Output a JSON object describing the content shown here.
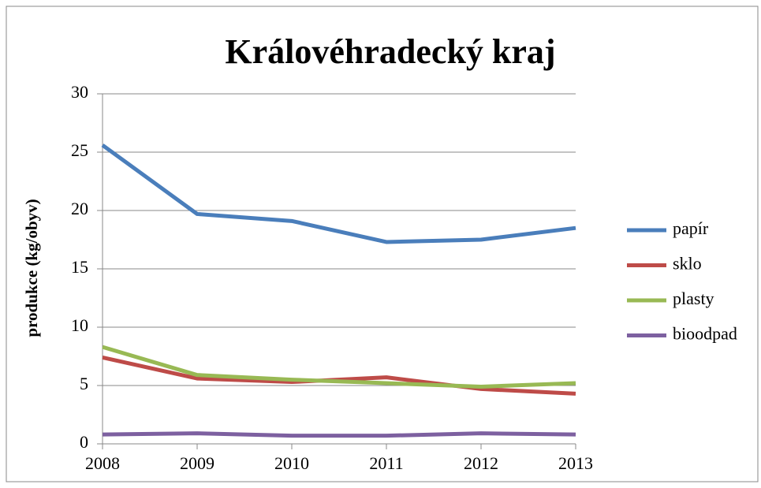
{
  "chart_data": {
    "type": "line",
    "title": "Královéhradecký kraj",
    "y_label": "produkce (kg/obyv)",
    "categories": [
      "2008",
      "2009",
      "2010",
      "2011",
      "2012",
      "2013"
    ],
    "series": [
      {
        "name": "papír",
        "color": "#4a7ebb",
        "values": [
          25.6,
          19.7,
          19.1,
          17.3,
          17.5,
          18.5
        ]
      },
      {
        "name": "sklo",
        "color": "#be4b48",
        "values": [
          7.4,
          5.6,
          5.3,
          5.7,
          4.7,
          4.3
        ]
      },
      {
        "name": "plasty",
        "color": "#98b954",
        "values": [
          8.3,
          5.9,
          5.5,
          5.2,
          4.9,
          5.2
        ]
      },
      {
        "name": "bioodpad",
        "color": "#7d60a0",
        "values": [
          0.8,
          0.9,
          0.7,
          0.7,
          0.9,
          0.8
        ]
      }
    ],
    "ylim": [
      0,
      30
    ],
    "yticks": [
      0,
      5,
      10,
      15,
      20,
      25,
      30
    ],
    "grid": true,
    "legend": "right"
  }
}
